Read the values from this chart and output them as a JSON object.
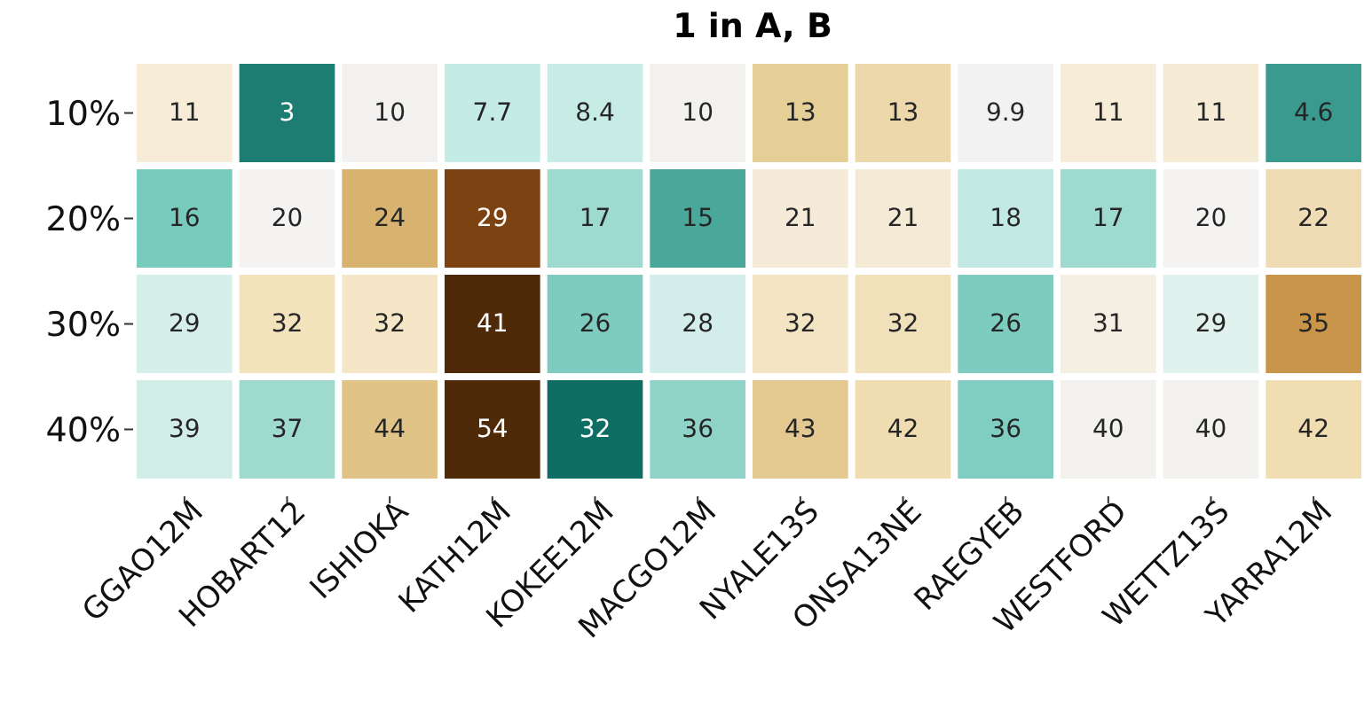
{
  "chart_data": {
    "type": "heatmap",
    "title": "1 in A, B",
    "categories": [
      "GGAO12M",
      "HOBART12",
      "ISHIOKA",
      "KATH12M",
      "KOKEE12M",
      "MACGO12M",
      "NYALE13S",
      "ONSA13NE",
      "RAEGYEB",
      "WESTFORD",
      "WETTZ13S",
      "YARRA12M"
    ],
    "y_categories": [
      "10%",
      "20%",
      "30%",
      "40%"
    ],
    "cells": [
      [
        11,
        3,
        10,
        7.7,
        8.4,
        10,
        13,
        13,
        9.9,
        11,
        11,
        4.6
      ],
      [
        16,
        20,
        24,
        29,
        17,
        15,
        21,
        21,
        18,
        17,
        20,
        22
      ],
      [
        29,
        32,
        32,
        41,
        26,
        28,
        32,
        32,
        26,
        31,
        29,
        35
      ],
      [
        39,
        37,
        44,
        54,
        32,
        36,
        43,
        42,
        36,
        40,
        40,
        42
      ]
    ],
    "colors": [
      [
        "#f6ecd8",
        "#1e7d72",
        "#f2f1ef",
        "#c4ebe5",
        "#c7ece6",
        "#f3f1ee",
        "#e6cf96",
        "#ecd8aa",
        "#f1f2f1",
        "#f6ecd8",
        "#f6ebd5",
        "#3a9a8e"
      ],
      [
        "#77cabc",
        "#f4f3f2",
        "#d8b36f",
        "#7d4211",
        "#9fdad0",
        "#4aa89b",
        "#f6ebd8",
        "#f5ead5",
        "#c2e9e3",
        "#9fdad0",
        "#f4f3f1",
        "#f0dcb4"
      ],
      [
        "#d6efeb",
        "#f3e3bd",
        "#f4e6c6",
        "#4e2a08",
        "#7dccbf",
        "#d3eeea",
        "#f3e5c3",
        "#f1e1bb",
        "#7dccbf",
        "#f5efe3",
        "#e0f1ee",
        "#c8954a"
      ],
      [
        "#d0ede8",
        "#9edace",
        "#e0c487",
        "#4e2a08",
        "#0f6e63",
        "#8fd3c8",
        "#e3c98f",
        "#efdcb0",
        "#80cdc1",
        "#f3f1ee",
        "#f3f1ee",
        "#f0deb2"
      ]
    ],
    "data_labels": true
  }
}
